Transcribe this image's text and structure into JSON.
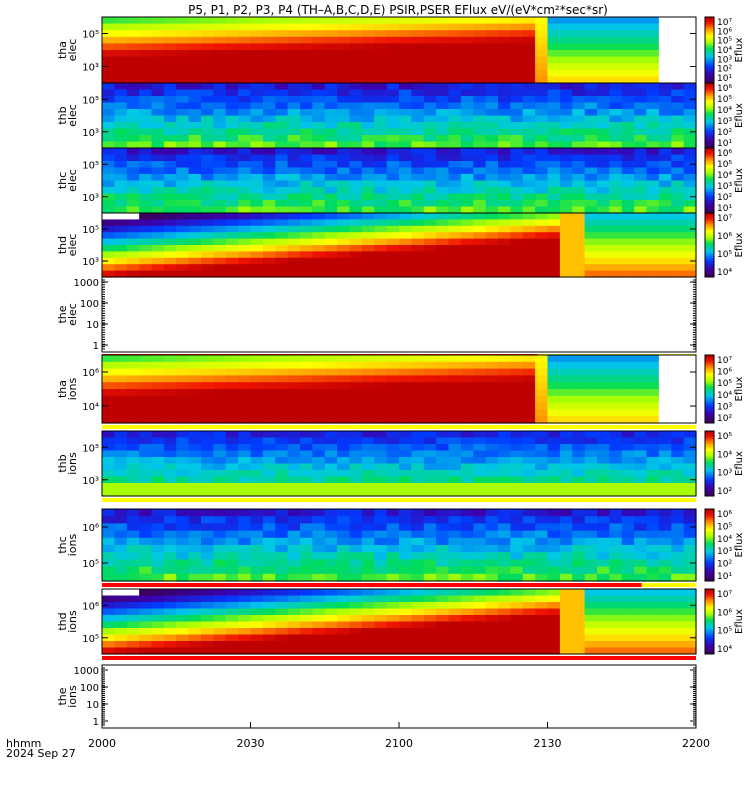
{
  "chart_data": {
    "type": "heatmap",
    "title": "P5, P1, P2, P3, P4 (TH–A,B,C,D,E) PSIR,PSER EFlux eV/(eV*cm²*sec*sr)",
    "x_axis": {
      "ticks": [
        "2000",
        "2030",
        "2100",
        "2130",
        "2200"
      ],
      "label_line1": "hhmm",
      "label_line2": "2024 Sep 27"
    },
    "panels": [
      {
        "id": "tha-elec",
        "label1": "tha",
        "label2": "elec",
        "kind": "spec",
        "profile": "tha",
        "flag": null,
        "yticks": [
          "10⁵",
          "10³"
        ],
        "cb_label": "Eflux",
        "cb_ticks": [
          "10⁷",
          "10⁶",
          "10⁵",
          "10⁴",
          "10³",
          "10²",
          "10¹"
        ]
      },
      {
        "id": "thb-elec",
        "label1": "thb",
        "label2": "elec",
        "kind": "spec",
        "profile": "noise",
        "flag": null,
        "yticks": [
          "10⁵",
          "10³"
        ],
        "cb_label": "Eflux",
        "cb_ticks": [
          "10⁶",
          "10⁵",
          "10⁴",
          "10³",
          "10²",
          "10¹"
        ]
      },
      {
        "id": "thc-elec",
        "label1": "thc",
        "label2": "elec",
        "kind": "spec",
        "profile": "noise",
        "flag": null,
        "yticks": [
          "10⁵",
          "10³"
        ],
        "cb_label": "Eflux",
        "cb_ticks": [
          "10⁶",
          "10⁵",
          "10⁴",
          "10³",
          "10²",
          "10¹"
        ]
      },
      {
        "id": "thd-elec",
        "label1": "thd",
        "label2": "elec",
        "kind": "spec",
        "profile": "thd",
        "flag": null,
        "yticks": [
          "10⁵",
          "10³"
        ],
        "cb_label": "Eflux",
        "cb_ticks": [
          "10⁷",
          "10⁶",
          "10⁵",
          "10⁴"
        ]
      },
      {
        "id": "the-elec",
        "label1": "the",
        "label2": "elec",
        "kind": "empty",
        "flag": "red",
        "flag_end": 2128,
        "yticks": [
          "1000",
          "100",
          "10",
          "1"
        ]
      },
      {
        "id": "tha-ions",
        "label1": "tha",
        "label2": "ions",
        "kind": "spec",
        "profile": "tha",
        "flag": "yellow",
        "yticks": [
          "10⁶",
          "10⁴"
        ],
        "cb_label": "Eflux",
        "cb_ticks": [
          "10⁷",
          "10⁶",
          "10⁵",
          "10⁴",
          "10³",
          "10²"
        ]
      },
      {
        "id": "thb-ions",
        "label1": "thb",
        "label2": "ions",
        "kind": "spec",
        "profile": "noise_low",
        "flag": "yellow",
        "yticks": [
          "10⁵",
          "10³"
        ],
        "cb_label": "Eflux",
        "cb_ticks": [
          "10⁵",
          "10⁴",
          "10³",
          "10²"
        ]
      },
      {
        "id": "thc-ions",
        "label1": "thc",
        "label2": "ions",
        "kind": "spec",
        "profile": "noise",
        "flag": "red",
        "flag_end": 2149,
        "yticks": [
          "10⁶",
          "10⁵"
        ],
        "cb_label": "Eflux",
        "cb_ticks": [
          "10⁶",
          "10⁵",
          "10⁴",
          "10³",
          "10²",
          "10¹"
        ]
      },
      {
        "id": "thd-ions",
        "label1": "thd",
        "label2": "ions",
        "kind": "spec",
        "profile": "thd",
        "flag": "red",
        "flag_end": 2200,
        "yticks": [
          "10⁶",
          "10⁵"
        ],
        "cb_label": "Eflux",
        "cb_ticks": [
          "10⁷",
          "10⁶",
          "10⁵",
          "10⁴"
        ]
      },
      {
        "id": "the-ions",
        "label1": "the",
        "label2": "ions",
        "kind": "empty",
        "flag": null,
        "yticks": [
          "1000",
          "100",
          "10",
          "1"
        ]
      }
    ]
  }
}
